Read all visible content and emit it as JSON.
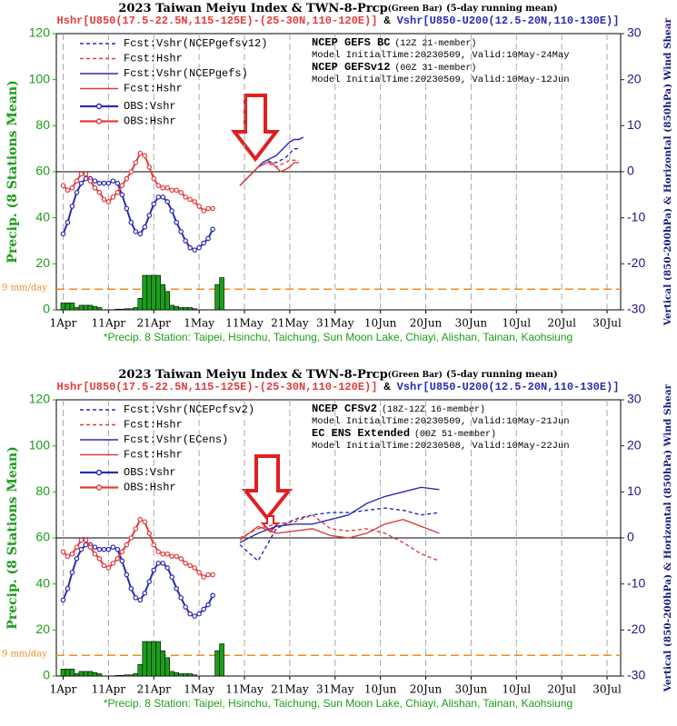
{
  "chart_data": [
    {
      "type": "line",
      "title": "2023 Taiwan Meiyu Index & TWN-8-Prcp",
      "title_note": "(Green Bar)",
      "title_suffix": "(5-day running mean)",
      "subtitle_hshr": "Hshr[U850(17.5-22.5N,115-125E)-(25-30N,110-120E)]",
      "subtitle_joiner": "&",
      "subtitle_vshr": "Vshr[U850-U200(12.5-20N,110-130E)]",
      "ylabel": "Precip. (8 Stations Mean)",
      "y2label": "Vertical (850-200hPa) & Horizontal (850hPa) Wind Shear",
      "xlim": [
        -1.5,
        123
      ],
      "ylim": [
        0,
        120
      ],
      "y2lim": [
        -30,
        30
      ],
      "xticks": [
        {
          "value": 0,
          "label": "1Apr"
        },
        {
          "value": 10,
          "label": "11Apr"
        },
        {
          "value": 20,
          "label": "21Apr"
        },
        {
          "value": 30,
          "label": "1May"
        },
        {
          "value": 40,
          "label": "11May"
        },
        {
          "value": 50,
          "label": "21May"
        },
        {
          "value": 60,
          "label": "31May"
        },
        {
          "value": 70,
          "label": "10Jun"
        },
        {
          "value": 80,
          "label": "20Jun"
        },
        {
          "value": 90,
          "label": "30Jun"
        },
        {
          "value": 100,
          "label": "10Jul"
        },
        {
          "value": 110,
          "label": "20Jul"
        },
        {
          "value": 120,
          "label": "30Jul"
        }
      ],
      "yticks": [
        0,
        20,
        40,
        60,
        80,
        100,
        120
      ],
      "y2ticks": [
        -30,
        -20,
        -10,
        0,
        10,
        20,
        30
      ],
      "grid": true,
      "threshold": 9,
      "threshold_label": "9 mm/day",
      "precip": {
        "color": "#1a9e1a",
        "x": [
          0,
          1,
          2,
          3,
          4,
          5,
          6,
          7,
          8,
          9,
          10,
          11,
          12,
          13,
          14,
          15,
          16,
          17,
          18,
          19,
          20,
          21,
          22,
          23,
          24,
          25,
          26,
          27,
          28,
          29,
          30,
          31,
          32,
          33,
          34,
          35
        ],
        "values": [
          3,
          3,
          3,
          1,
          2,
          2,
          2,
          1.5,
          1,
          0,
          0,
          0,
          0.3,
          0.3,
          0.5,
          0.5,
          1,
          5,
          15,
          15,
          15,
          15,
          11,
          8,
          2,
          1.5,
          1,
          1,
          1,
          0.5,
          0,
          0,
          0,
          0,
          11,
          14
        ]
      },
      "series": [
        {
          "name": "Fcst:Vshr(NCEPgefsv12)",
          "color": "#2b2bb0",
          "dash": true,
          "axis": "y2",
          "x": [
            40,
            41,
            42,
            43,
            44,
            45,
            46,
            47,
            48,
            49,
            50,
            51,
            52
          ],
          "values": [
            -2,
            -1,
            0,
            1,
            2,
            2.5,
            2,
            2,
            2.5,
            3,
            4,
            5,
            5
          ]
        },
        {
          "name": "Fcst:Hshr",
          "color": "#e03c3c",
          "dash": true,
          "axis": "y2",
          "x": [
            40,
            41,
            42,
            43,
            44,
            45,
            46,
            47,
            48,
            49,
            50,
            51,
            52
          ],
          "values": [
            -2,
            -1,
            0,
            1,
            1.5,
            2,
            1.5,
            1,
            1.5,
            2,
            2.5,
            2.5,
            2.5
          ]
        },
        {
          "name": "Fcst:Vshr(NCEPgefs)",
          "color": "#2b2bb0",
          "dash": false,
          "axis": "y2",
          "x": [
            39,
            40,
            41,
            42,
            43,
            44,
            45,
            46,
            47,
            48,
            49,
            50,
            51,
            52,
            53
          ],
          "values": [
            -3,
            -2,
            -1,
            0,
            1,
            2,
            2.5,
            3,
            3.5,
            4.5,
            5.5,
            6.5,
            7,
            7,
            7.5
          ]
        },
        {
          "name": "Fcst:Hshr",
          "color": "#e03c3c",
          "dash": false,
          "axis": "y2",
          "x": [
            39,
            40,
            41,
            42,
            43,
            44,
            45,
            46,
            47,
            48,
            49,
            50,
            51,
            52
          ],
          "values": [
            -3,
            -2,
            -1,
            0,
            1,
            1.5,
            2,
            2,
            1,
            0,
            0.5,
            1,
            2,
            2
          ]
        },
        {
          "name": "OBS:Vshr",
          "color": "#2b2bb0",
          "dash": false,
          "marker": "circle",
          "axis": "y2",
          "x": [
            0,
            1,
            2,
            3,
            4,
            5,
            6,
            7,
            8,
            9,
            10,
            11,
            12,
            13,
            14,
            15,
            16,
            17,
            18,
            19,
            20,
            21,
            22,
            23,
            24,
            25,
            26,
            27,
            28,
            29,
            30,
            31,
            32,
            33
          ],
          "values": [
            -13.5,
            -11,
            -7.5,
            -4.5,
            -2.5,
            -1.5,
            -1.5,
            -2,
            -2.5,
            -2.5,
            -2.5,
            -2,
            -2.5,
            -5,
            -8,
            -11,
            -13,
            -13.5,
            -12,
            -9.5,
            -7,
            -5.5,
            -5.5,
            -6.5,
            -8.5,
            -11,
            -13,
            -15,
            -16.5,
            -17,
            -16.5,
            -15.5,
            -14.5,
            -12.5
          ]
        },
        {
          "name": "OBS:Hshr",
          "color": "#e03c3c",
          "dash": false,
          "marker": "circle",
          "axis": "y2",
          "x": [
            0,
            1,
            2,
            3,
            4,
            5,
            6,
            7,
            8,
            9,
            10,
            11,
            12,
            13,
            14,
            15,
            16,
            17,
            18,
            19,
            20,
            21,
            22,
            23,
            24,
            25,
            26,
            27,
            28,
            29,
            30,
            31,
            32,
            33
          ],
          "values": [
            -3,
            -4,
            -3.5,
            -2,
            -0.5,
            -0.5,
            -2,
            -3.5,
            -4.5,
            -6,
            -6.5,
            -5.5,
            -4.5,
            -3,
            -1.5,
            0,
            2,
            4,
            3.5,
            1,
            -1.5,
            -3,
            -3.5,
            -3.5,
            -4,
            -4,
            -4.5,
            -5.5,
            -6,
            -6.5,
            -7.5,
            -8.5,
            -8,
            -8
          ]
        }
      ],
      "models": [
        {
          "name": "NCEP GEFS BC",
          "members": "(12Z 21-member)",
          "info": "Model InitialTime:20230509, Valid:10May-24May"
        },
        {
          "name": "NCEP GEFSv12",
          "members": "(00Z 31-member)",
          "info": "Model InitialTime:20230509, Valid:10May-12Jun"
        }
      ],
      "footnote": "*Precip. 8 Station: Taipei, Hsinchu, Taichung, Sun Moon Lake, Chiayi, Alishan, Tainan, Kaohsiung"
    },
    {
      "type": "line",
      "title": "2023 Taiwan Meiyu Index & TWN-8-Prcp",
      "title_note": "(Green Bar)",
      "title_suffix": "(5-day running mean)",
      "subtitle_hshr": "Hshr[U850(17.5-22.5N,115-125E)-(25-30N,110-120E)]",
      "subtitle_joiner": "&",
      "subtitle_vshr": "Vshr[U850-U200(12.5-20N,110-130E)]",
      "ylabel": "Precip. (8 Stations Mean)",
      "y2label": "Vertical (850-200hPa) & Horizontal (850hPa) Wind Shear",
      "xlim": [
        -1.5,
        123
      ],
      "ylim": [
        0,
        120
      ],
      "y2lim": [
        -30,
        30
      ],
      "xticks": [
        {
          "value": 0,
          "label": "1Apr"
        },
        {
          "value": 10,
          "label": "11Apr"
        },
        {
          "value": 20,
          "label": "21Apr"
        },
        {
          "value": 30,
          "label": "1May"
        },
        {
          "value": 40,
          "label": "11May"
        },
        {
          "value": 50,
          "label": "21May"
        },
        {
          "value": 60,
          "label": "31May"
        },
        {
          "value": 70,
          "label": "10Jun"
        },
        {
          "value": 80,
          "label": "20Jun"
        },
        {
          "value": 90,
          "label": "30Jun"
        },
        {
          "value": 100,
          "label": "10Jul"
        },
        {
          "value": 110,
          "label": "20Jul"
        },
        {
          "value": 120,
          "label": "30Jul"
        }
      ],
      "yticks": [
        0,
        20,
        40,
        60,
        80,
        100,
        120
      ],
      "y2ticks": [
        -30,
        -20,
        -10,
        0,
        10,
        20,
        30
      ],
      "grid": true,
      "threshold": 9,
      "threshold_label": "9 mm/day",
      "precip": {
        "color": "#1a9e1a",
        "x": [
          0,
          1,
          2,
          3,
          4,
          5,
          6,
          7,
          8,
          9,
          10,
          11,
          12,
          13,
          14,
          15,
          16,
          17,
          18,
          19,
          20,
          21,
          22,
          23,
          24,
          25,
          26,
          27,
          28,
          29,
          30,
          31,
          32,
          33,
          34,
          35
        ],
        "values": [
          3,
          3,
          3,
          1,
          2,
          2,
          2,
          1.5,
          1,
          0,
          0,
          0,
          0.3,
          0.3,
          0.5,
          0.5,
          1,
          5,
          15,
          15,
          15,
          15,
          11,
          8,
          2,
          1.5,
          1,
          1,
          1,
          0.5,
          0,
          0,
          0,
          0,
          11,
          14
        ]
      },
      "series": [
        {
          "name": "Fcst:Vshr(NCEPcfsv2)",
          "color": "#2b2bb0",
          "dash": true,
          "axis": "y2",
          "x": [
            39,
            43,
            47,
            51,
            55,
            59,
            63,
            67,
            71,
            75,
            79,
            83
          ],
          "values": [
            -1.5,
            -5,
            2,
            4,
            5,
            5.5,
            5.5,
            6,
            6.5,
            6,
            5,
            5.5
          ]
        },
        {
          "name": "Fcst:Hshr",
          "color": "#e03c3c",
          "dash": true,
          "axis": "y2",
          "x": [
            39,
            43,
            47,
            51,
            55,
            59,
            63,
            67,
            71,
            75,
            79,
            83
          ],
          "values": [
            0,
            2,
            3,
            3.5,
            5,
            2,
            1.5,
            2,
            1,
            -1,
            -3.5,
            -5
          ]
        },
        {
          "name": "Fcst:Vshr(ECens)",
          "color": "#2b2bb0",
          "dash": false,
          "axis": "y2",
          "x": [
            39,
            43,
            47,
            51,
            55,
            59,
            63,
            67,
            71,
            75,
            79,
            83
          ],
          "values": [
            -1,
            1,
            2.5,
            3,
            3,
            4,
            5,
            7.5,
            9,
            10,
            11,
            10.5
          ]
        },
        {
          "name": "Fcst:Hshr",
          "color": "#e03c3c",
          "dash": false,
          "axis": "y2",
          "x": [
            39,
            43,
            47,
            51,
            55,
            59,
            63,
            67,
            71,
            75,
            79,
            83
          ],
          "values": [
            -0.5,
            2.5,
            1,
            1.5,
            2,
            0.5,
            0,
            1,
            3,
            4,
            2.5,
            1
          ]
        },
        {
          "name": "OBS:Vshr",
          "color": "#2b2bb0",
          "dash": false,
          "marker": "circle",
          "axis": "y2",
          "x": [
            0,
            1,
            2,
            3,
            4,
            5,
            6,
            7,
            8,
            9,
            10,
            11,
            12,
            13,
            14,
            15,
            16,
            17,
            18,
            19,
            20,
            21,
            22,
            23,
            24,
            25,
            26,
            27,
            28,
            29,
            30,
            31,
            32,
            33
          ],
          "values": [
            -13.5,
            -11,
            -7.5,
            -4.5,
            -2.5,
            -1.5,
            -1.5,
            -2,
            -2.5,
            -2.5,
            -2.5,
            -2,
            -2.5,
            -5,
            -8,
            -11,
            -13,
            -13.5,
            -12,
            -9.5,
            -7,
            -5.5,
            -5.5,
            -6.5,
            -8.5,
            -11,
            -13,
            -15,
            -16.5,
            -17,
            -16.5,
            -15.5,
            -14.5,
            -12.5
          ]
        },
        {
          "name": "OBS:Hshr",
          "color": "#e03c3c",
          "dash": false,
          "marker": "circle",
          "axis": "y2",
          "x": [
            0,
            1,
            2,
            3,
            4,
            5,
            6,
            7,
            8,
            9,
            10,
            11,
            12,
            13,
            14,
            15,
            16,
            17,
            18,
            19,
            20,
            21,
            22,
            23,
            24,
            25,
            26,
            27,
            28,
            29,
            30,
            31,
            32,
            33
          ],
          "values": [
            -3,
            -4,
            -3.5,
            -2,
            -0.5,
            -0.5,
            -2,
            -3.5,
            -4.5,
            -6,
            -6.5,
            -5.5,
            -4.5,
            -3,
            -1.5,
            0,
            2,
            4,
            3.5,
            1,
            -1.5,
            -3,
            -3.5,
            -3.5,
            -4,
            -4,
            -4.5,
            -5.5,
            -6,
            -6.5,
            -7.5,
            -8.5,
            -8,
            -8
          ]
        }
      ],
      "models": [
        {
          "name": "NCEP CFSv2",
          "members": "(18Z-12Z 16-member)",
          "info": "Model InitialTime:20230509, Valid:10May-21Jun"
        },
        {
          "name": "EC ENS Extended",
          "members": "(00Z 51-member)",
          "info": "Model InitialTime:20230508, Valid:10May-22Jun"
        }
      ],
      "footnote": "*Precip. 8 Station: Taipei, Hsinchu, Taichung, Sun Moon Lake, Chiayi, Alishan, Tainan, Kaohsiung"
    }
  ]
}
